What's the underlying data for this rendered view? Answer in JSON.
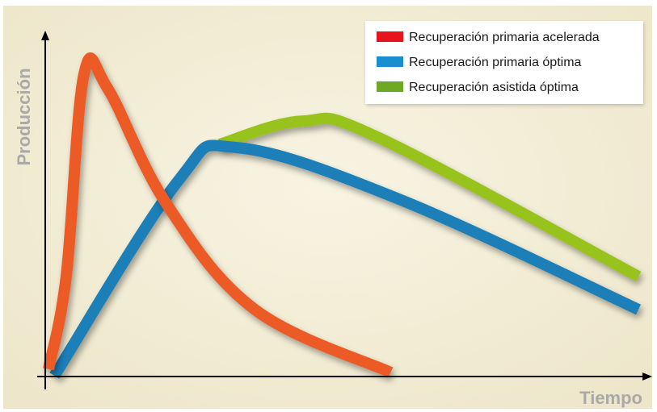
{
  "chart_data": {
    "type": "line",
    "title": "",
    "xlabel": "Tiempo",
    "ylabel": "Producción",
    "grid": false,
    "legend_position": "top-right",
    "background_color": "#f3eed8",
    "series": [
      {
        "name": "Recuperación primaria acelerada",
        "legend_color": "#e8141b",
        "line_color": "#ec5a26",
        "points": [
          [
            0,
            0.02
          ],
          [
            0.03,
            0.3
          ],
          [
            0.06,
            0.91
          ],
          [
            0.1,
            0.87
          ],
          [
            0.2,
            0.52
          ],
          [
            0.35,
            0.2
          ],
          [
            0.58,
            0.01
          ]
        ]
      },
      {
        "name": "Recuperación primaria óptima",
        "legend_color": "#1a8fd0",
        "line_color": "#1a7fb8",
        "points": [
          [
            0.01,
            0.0
          ],
          [
            0.22,
            0.59
          ],
          [
            0.32,
            0.69
          ],
          [
            0.6,
            0.53
          ],
          [
            1.0,
            0.2
          ]
        ]
      },
      {
        "name": "Recuperación asistida óptima",
        "legend_color": "#6fa823",
        "line_color": "#98c21a",
        "points": [
          [
            0.29,
            0.7
          ],
          [
            0.43,
            0.77
          ],
          [
            0.56,
            0.72
          ],
          [
            1.0,
            0.3
          ]
        ]
      }
    ]
  }
}
